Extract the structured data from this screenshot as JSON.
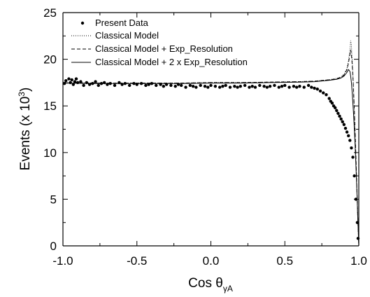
{
  "chart_data": {
    "type": "scatter",
    "title": "",
    "xlabel": {
      "main": "Cos θ",
      "sub": "γA"
    },
    "ylabel": {
      "main": "Events (x 10",
      "sup": "3",
      "end": ")"
    },
    "xlim": [
      -1.0,
      1.0
    ],
    "ylim": [
      0,
      25
    ],
    "xticks": [
      -1.0,
      -0.5,
      0.0,
      0.5,
      1.0
    ],
    "xtick_labels": [
      "-1.0",
      "-0.5",
      "0.0",
      "0.5",
      "1.0"
    ],
    "yticks": [
      0,
      5,
      10,
      15,
      20,
      25
    ],
    "ytick_labels": [
      "0",
      "5",
      "10",
      "15",
      "20",
      "25"
    ],
    "grid": false,
    "legend_position": "top-left",
    "series": [
      {
        "name": "Present Data",
        "style": "points",
        "x": [
          -0.99,
          -0.98,
          -0.96,
          -0.95,
          -0.94,
          -0.93,
          -0.92,
          -0.91,
          -0.9,
          -0.88,
          -0.86,
          -0.84,
          -0.82,
          -0.8,
          -0.78,
          -0.76,
          -0.74,
          -0.72,
          -0.7,
          -0.68,
          -0.65,
          -0.62,
          -0.6,
          -0.58,
          -0.55,
          -0.52,
          -0.5,
          -0.47,
          -0.44,
          -0.42,
          -0.4,
          -0.37,
          -0.34,
          -0.32,
          -0.3,
          -0.27,
          -0.24,
          -0.22,
          -0.2,
          -0.17,
          -0.14,
          -0.12,
          -0.1,
          -0.07,
          -0.04,
          -0.02,
          0.0,
          0.03,
          0.06,
          0.08,
          0.1,
          0.13,
          0.16,
          0.18,
          0.2,
          0.23,
          0.26,
          0.28,
          0.3,
          0.33,
          0.36,
          0.38,
          0.4,
          0.43,
          0.46,
          0.48,
          0.5,
          0.53,
          0.56,
          0.58,
          0.6,
          0.63,
          0.66,
          0.68,
          0.7,
          0.72,
          0.74,
          0.76,
          0.78,
          0.8,
          0.81,
          0.82,
          0.83,
          0.84,
          0.85,
          0.86,
          0.87,
          0.88,
          0.89,
          0.9,
          0.91,
          0.92,
          0.93,
          0.94,
          0.95,
          0.96,
          0.97,
          0.98,
          0.99,
          0.995
        ],
        "y": [
          17.4,
          17.7,
          17.9,
          17.5,
          17.8,
          17.3,
          17.6,
          17.9,
          17.5,
          17.6,
          17.2,
          17.5,
          17.3,
          17.4,
          17.6,
          17.2,
          17.4,
          17.5,
          17.3,
          17.4,
          17.2,
          17.5,
          17.3,
          17.4,
          17.2,
          17.4,
          17.3,
          17.4,
          17.2,
          17.3,
          17.4,
          17.2,
          17.3,
          17.1,
          17.3,
          17.2,
          17.1,
          17.3,
          17.2,
          17.0,
          17.2,
          17.1,
          17.0,
          17.2,
          17.1,
          17.0,
          17.2,
          17.1,
          17.0,
          17.1,
          17.2,
          17.0,
          17.1,
          17.0,
          17.1,
          17.2,
          17.0,
          17.1,
          17.0,
          17.2,
          17.1,
          17.0,
          17.1,
          17.2,
          17.0,
          17.1,
          17.2,
          17.0,
          17.1,
          17.0,
          17.1,
          17.0,
          17.2,
          17.0,
          16.9,
          16.8,
          16.6,
          16.4,
          16.2,
          15.8,
          15.5,
          15.3,
          15.0,
          14.8,
          14.5,
          14.2,
          13.9,
          13.6,
          13.3,
          13.0,
          12.6,
          12.2,
          11.8,
          11.3,
          10.5,
          9.5,
          7.5,
          5.0,
          2.5,
          0.8
        ]
      },
      {
        "name": "Classical Model",
        "style": "dotted",
        "x": [
          -1.0,
          -0.8,
          -0.6,
          -0.4,
          -0.2,
          0.0,
          0.2,
          0.4,
          0.6,
          0.7,
          0.8,
          0.85,
          0.88,
          0.9,
          0.92,
          0.93,
          0.94,
          0.945,
          0.95,
          0.955,
          0.96,
          0.965,
          0.97,
          0.975,
          0.98,
          0.985,
          0.99,
          0.995,
          1.0
        ],
        "y": [
          17.5,
          17.45,
          17.45,
          17.45,
          17.45,
          17.5,
          17.5,
          17.55,
          17.6,
          17.65,
          17.8,
          17.95,
          18.1,
          18.4,
          19.0,
          19.8,
          21.0,
          22.0,
          21.5,
          20.0,
          18.5,
          16.5,
          14.5,
          12.0,
          9.5,
          7.0,
          4.5,
          2.0,
          0.0
        ]
      },
      {
        "name": "Classical Model + Exp_Resolution",
        "style": "dashed",
        "x": [
          -1.0,
          -0.8,
          -0.6,
          -0.4,
          -0.2,
          0.0,
          0.2,
          0.4,
          0.6,
          0.7,
          0.8,
          0.85,
          0.88,
          0.9,
          0.92,
          0.93,
          0.94,
          0.945,
          0.95,
          0.955,
          0.96,
          0.965,
          0.97,
          0.975,
          0.98,
          0.985,
          0.99,
          0.995,
          1.0
        ],
        "y": [
          17.5,
          17.45,
          17.45,
          17.45,
          17.45,
          17.5,
          17.5,
          17.55,
          17.6,
          17.65,
          17.8,
          17.9,
          18.1,
          18.3,
          18.9,
          19.6,
          20.5,
          21.0,
          20.5,
          19.5,
          18.2,
          16.4,
          14.5,
          12.2,
          9.8,
          7.3,
          4.8,
          2.2,
          0.0
        ]
      },
      {
        "name": "Classical Model + 2 x Exp_Resolution",
        "style": "solid",
        "x": [
          -1.0,
          -0.8,
          -0.6,
          -0.4,
          -0.2,
          0.0,
          0.2,
          0.4,
          0.6,
          0.7,
          0.8,
          0.85,
          0.88,
          0.9,
          0.92,
          0.93,
          0.94,
          0.945,
          0.95,
          0.955,
          0.96,
          0.965,
          0.97,
          0.975,
          0.98,
          0.985,
          0.99,
          0.995,
          1.0
        ],
        "y": [
          17.45,
          17.4,
          17.4,
          17.4,
          17.4,
          17.45,
          17.45,
          17.5,
          17.55,
          17.6,
          17.75,
          17.85,
          18.0,
          18.2,
          18.6,
          18.9,
          18.7,
          18.2,
          17.5,
          16.5,
          15.3,
          14.0,
          12.5,
          10.8,
          8.8,
          6.8,
          4.5,
          2.2,
          0.0
        ]
      }
    ]
  }
}
